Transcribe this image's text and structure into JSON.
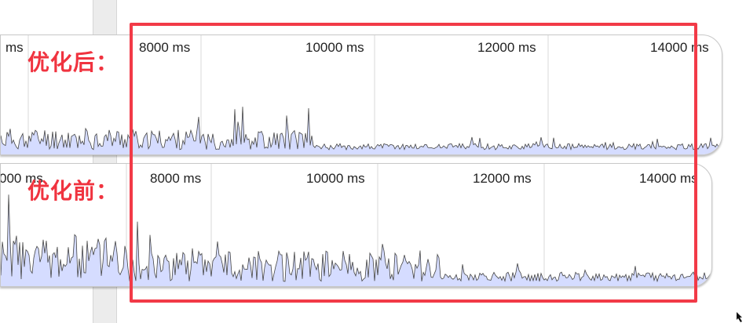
{
  "panels": [
    {
      "id": "after",
      "label": "优化后：",
      "ticks": [
        {
          "text": "ms"
        },
        {
          "text": "8000 ms"
        },
        {
          "text": "10000 ms"
        },
        {
          "text": "12000 ms"
        },
        {
          "text": "14000 ms"
        }
      ]
    },
    {
      "id": "before",
      "label": "优化前：",
      "ticks": [
        {
          "text": "000 ms"
        },
        {
          "text": "8000 ms"
        },
        {
          "text": "10000 ms"
        },
        {
          "text": "12000 ms"
        },
        {
          "text": "14000 ms"
        }
      ]
    }
  ],
  "colors": {
    "fill": "#d5dcff",
    "line": "#444444",
    "grid": "#d9d9d9",
    "highlight": "#f23a47",
    "label": "#f0333f"
  },
  "icons": {
    "resize": "resize-corner-icon"
  }
}
